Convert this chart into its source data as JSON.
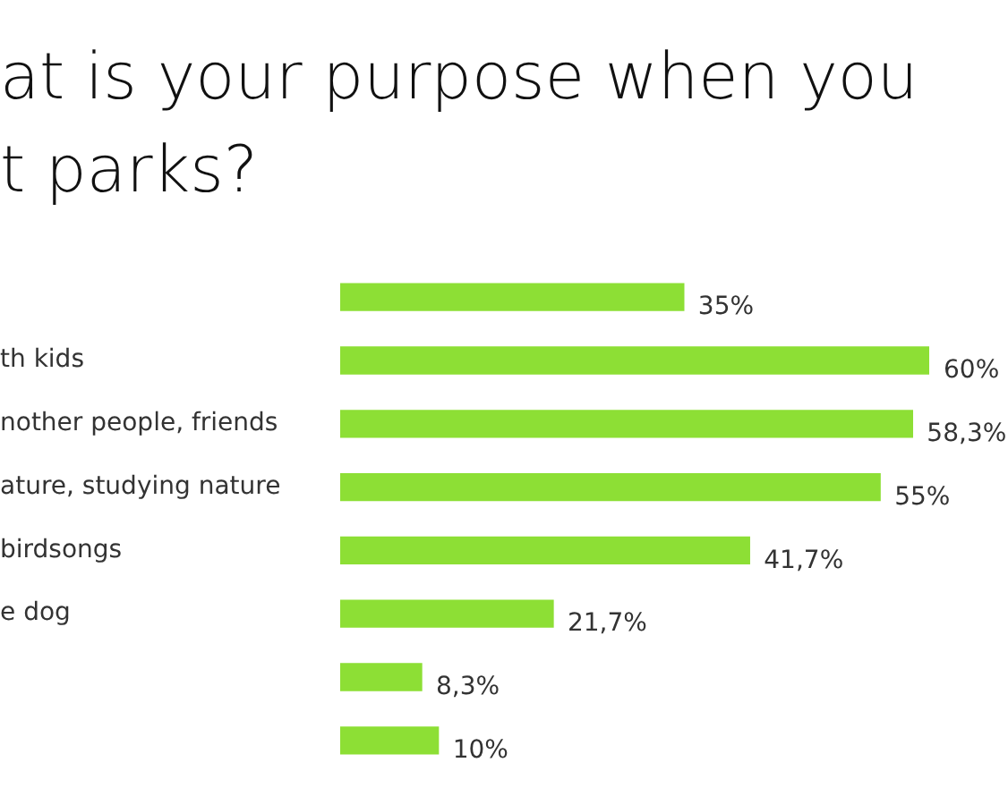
{
  "chart_data": {
    "type": "bar",
    "orientation": "horizontal",
    "title": "at is your purpose when you\nt parks?",
    "categories": [
      null,
      "th kids",
      "nother people, friends",
      "ature, studying nature",
      "birdsongs",
      "e dog",
      null,
      null
    ],
    "values": [
      35,
      60,
      58.3,
      55,
      41.7,
      21.7,
      8.3,
      10
    ],
    "value_labels": [
      "35%",
      "60%",
      "58,3%",
      "55%",
      "41,7%",
      "21,7%",
      "8,3%",
      "10%"
    ],
    "color": "#8ddf35",
    "grid": false,
    "legend": false
  }
}
